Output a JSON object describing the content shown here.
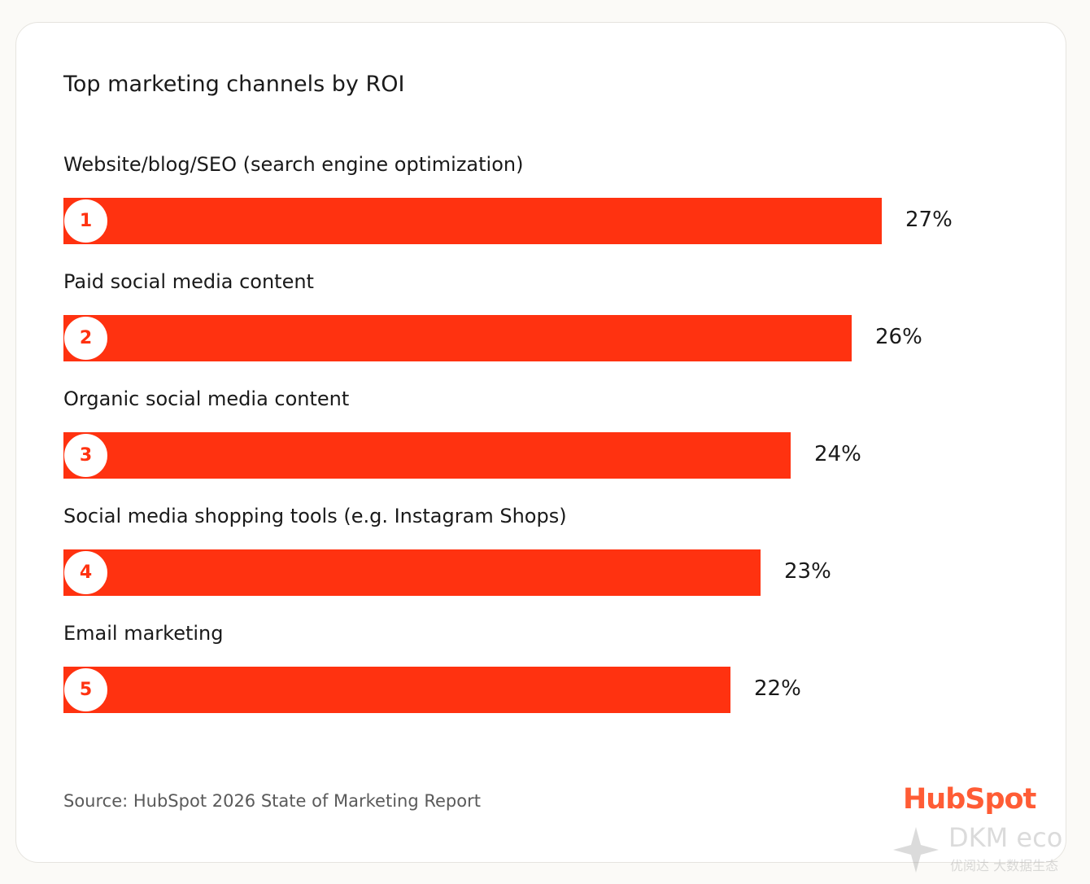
{
  "chart_data": {
    "type": "bar",
    "orientation": "horizontal",
    "title": "Top marketing channels by ROI",
    "categories": [
      "Website/blog/SEO (search engine optimization)",
      "Paid social media content",
      "Organic social media content",
      "Social media shopping tools (e.g. Instagram Shops)",
      "Email marketing"
    ],
    "ranks": [
      "1",
      "2",
      "3",
      "4",
      "5"
    ],
    "values": [
      27,
      26,
      24,
      23,
      22
    ],
    "value_labels": [
      "27%",
      "26%",
      "24%",
      "23%",
      "22%"
    ],
    "unit": "%",
    "xlim": [
      0,
      27
    ],
    "grid": false,
    "legend": "none",
    "bar_color": "#ff3210"
  },
  "source": "Source: HubSpot 2026 State of Marketing Report",
  "logo": "HubSpot",
  "watermark": {
    "text": "DKM eco",
    "subtext": "优阅达 大数据生态"
  },
  "colors": {
    "accent": "#ff3210",
    "logo": "#ff5c35"
  }
}
